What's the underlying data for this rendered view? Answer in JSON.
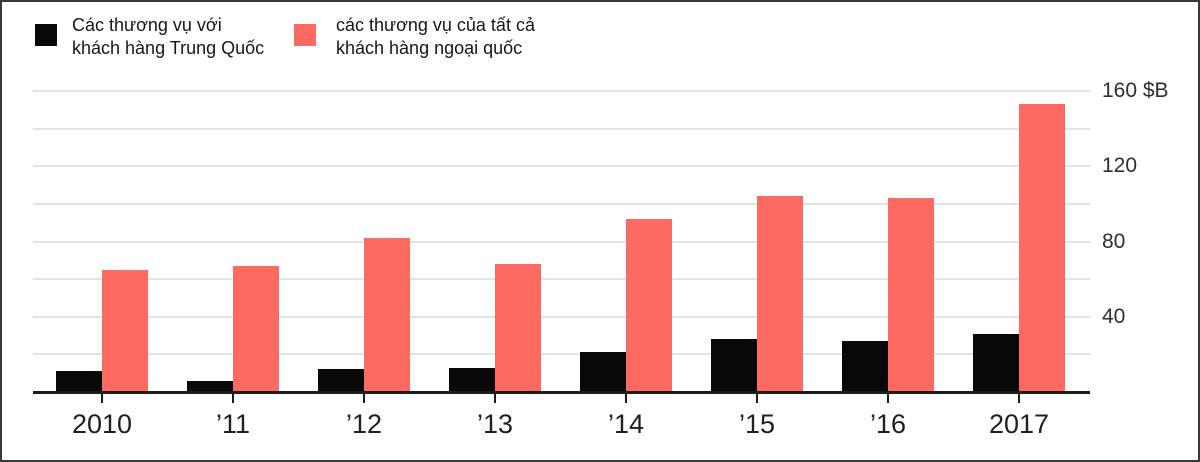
{
  "legend": {
    "items": [
      {
        "label_line1": "Các thương vụ với",
        "label_line2": "khách hàng Trung Quốc",
        "color": "#080808"
      },
      {
        "label_line1": "các thương vụ của tất cả",
        "label_line2": "khách hàng ngoại quốc",
        "color": "#fc6a62"
      }
    ]
  },
  "chart_data": {
    "type": "bar",
    "categories": [
      "2010",
      "’11",
      "’12",
      "’13",
      "’14",
      "’15",
      "’16",
      "2017"
    ],
    "series": [
      {
        "name": "Các thương vụ với khách hàng Trung Quốc",
        "key": "china",
        "color": "#080808",
        "values": [
          11,
          6,
          12,
          13,
          21,
          28,
          27,
          31
        ]
      },
      {
        "name": "các thương vụ của tất cả khách hàng ngoại quốc",
        "key": "foreign",
        "color": "#fc6a62",
        "values": [
          65,
          67,
          82,
          68,
          92,
          104,
          103,
          153
        ]
      }
    ],
    "unit": "$B",
    "yticks": [
      {
        "value": 40,
        "label": "40"
      },
      {
        "value": 80,
        "label": "80"
      },
      {
        "value": 120,
        "label": "120"
      },
      {
        "value": 160,
        "label": "160 $B"
      }
    ],
    "ylim": [
      0,
      165
    ],
    "grid_interval": 20,
    "grid": "horizontal",
    "legend_position": "top-left"
  }
}
